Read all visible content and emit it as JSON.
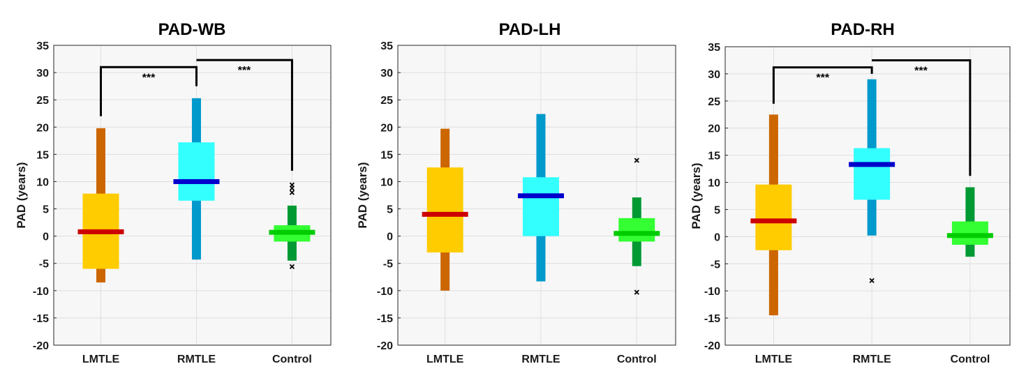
{
  "chart_data": [
    {
      "type": "box",
      "title": "PAD-WB",
      "ylabel": "PAD (years)",
      "xlabel": "",
      "ylim": [
        -20,
        35
      ],
      "yticks": [
        35,
        30,
        25,
        20,
        15,
        10,
        5,
        0,
        -5,
        -10,
        -15,
        -20
      ],
      "grid": true,
      "categories": [
        "LMTLE",
        "RMTLE",
        "Control"
      ],
      "groups": [
        {
          "name": "LMTLE",
          "whisker_low": -8.5,
          "q1": -6.0,
          "median": 0.8,
          "q3": 7.8,
          "whisker_high": 19.8,
          "outliers": [],
          "box_color": "#ffcc00",
          "whisker_color": "#cc6600",
          "median_color": "#cc0000"
        },
        {
          "name": "RMTLE",
          "whisker_low": -4.3,
          "q1": 6.5,
          "median": 10.0,
          "q3": 17.2,
          "whisker_high": 25.3,
          "outliers": [],
          "box_color": "#33ffff",
          "whisker_color": "#0099cc",
          "median_color": "#0000cc"
        },
        {
          "name": "Control",
          "whisker_low": -4.5,
          "q1": -1.0,
          "median": 0.7,
          "q3": 2.0,
          "whisker_high": 5.6,
          "outliers": [
            8.0,
            8.8,
            9.4,
            -5.6
          ],
          "box_color": "#33ff33",
          "whisker_color": "#009933",
          "median_color": "#00cc00"
        }
      ],
      "significance": [
        {
          "from": "LMTLE",
          "to": "RMTLE",
          "label": "***",
          "bar_y": 31.0,
          "from_y": 22.0,
          "to_y": 27.5
        },
        {
          "from": "RMTLE",
          "to": "Control",
          "label": "***",
          "bar_y": 32.3,
          "from_y": 32.3,
          "to_y": 12.0
        }
      ]
    },
    {
      "type": "box",
      "title": "PAD-LH",
      "ylabel": "PAD (years)",
      "xlabel": "",
      "ylim": [
        -20,
        35
      ],
      "yticks": [
        35,
        30,
        25,
        20,
        15,
        10,
        5,
        0,
        -5,
        -10,
        -15,
        -20
      ],
      "grid": true,
      "categories": [
        "LMTLE",
        "RMTLE",
        "Control"
      ],
      "groups": [
        {
          "name": "LMTLE",
          "whisker_low": -10.0,
          "q1": -3.0,
          "median": 4.0,
          "q3": 12.6,
          "whisker_high": 19.7,
          "outliers": [],
          "box_color": "#ffcc00",
          "whisker_color": "#cc6600",
          "median_color": "#cc0000"
        },
        {
          "name": "RMTLE",
          "whisker_low": -8.3,
          "q1": 0.0,
          "median": 7.4,
          "q3": 10.8,
          "whisker_high": 22.4,
          "outliers": [],
          "box_color": "#33ffff",
          "whisker_color": "#0099cc",
          "median_color": "#0000cc"
        },
        {
          "name": "Control",
          "whisker_low": -5.5,
          "q1": -1.0,
          "median": 0.5,
          "q3": 3.3,
          "whisker_high": 7.1,
          "outliers": [
            13.9,
            -10.3
          ],
          "box_color": "#33ff33",
          "whisker_color": "#009933",
          "median_color": "#00cc00"
        }
      ],
      "significance": []
    },
    {
      "type": "box",
      "title": "PAD-RH",
      "ylabel": "PAD (years)",
      "xlabel": "",
      "ylim": [
        -20,
        35
      ],
      "yticks": [
        35,
        30,
        25,
        20,
        15,
        10,
        5,
        0,
        -5,
        -10,
        -15,
        -20
      ],
      "grid": true,
      "categories": [
        "LMTLE",
        "RMTLE",
        "Control"
      ],
      "groups": [
        {
          "name": "LMTLE",
          "whisker_low": -14.5,
          "q1": -2.5,
          "median": 2.9,
          "q3": 9.6,
          "whisker_high": 22.5,
          "outliers": [],
          "box_color": "#ffcc00",
          "whisker_color": "#cc6600",
          "median_color": "#cc0000"
        },
        {
          "name": "RMTLE",
          "whisker_low": 0.2,
          "q1": 6.8,
          "median": 13.3,
          "q3": 16.3,
          "whisker_high": 29.0,
          "outliers": [
            -8.1
          ],
          "box_color": "#33ffff",
          "whisker_color": "#0099cc",
          "median_color": "#0000cc"
        },
        {
          "name": "Control",
          "whisker_low": -3.7,
          "q1": -1.5,
          "median": 0.2,
          "q3": 2.8,
          "whisker_high": 9.1,
          "outliers": [],
          "box_color": "#33ff33",
          "whisker_color": "#009933",
          "median_color": "#00cc00"
        }
      ],
      "significance": [
        {
          "from": "LMTLE",
          "to": "RMTLE",
          "label": "***",
          "bar_y": 31.2,
          "from_y": 24.5,
          "to_y": 30.0
        },
        {
          "from": "RMTLE",
          "to": "Control",
          "label": "***",
          "bar_y": 32.5,
          "from_y": 32.5,
          "to_y": 11.2
        }
      ]
    }
  ],
  "colors": {
    "axes_background": "#f7f7f7",
    "grid": "#dedede",
    "axis": "#262626",
    "bracket": "#000000"
  }
}
